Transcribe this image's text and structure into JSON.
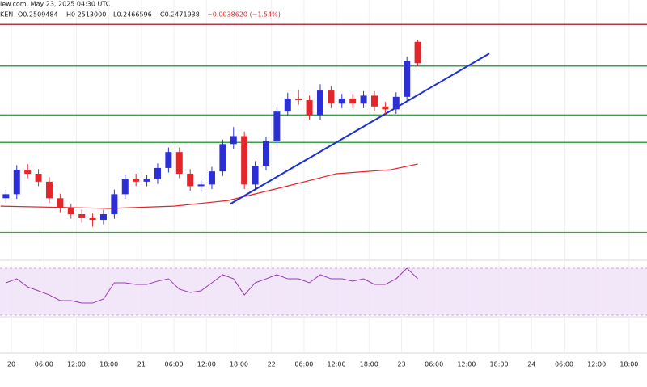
{
  "header": {
    "source": "iew.com, May 23, 2025 04:30 UTC",
    "symbol": "KEN",
    "open": "O0.2509484",
    "high": "H0.2513000",
    "low": "L0.2466596",
    "close": "C0.2471938",
    "change": "−0.0038620 (−1.54%)"
  },
  "chart_data": {
    "type": "candlestick",
    "x": [
      -1,
      1,
      3,
      5,
      7,
      9,
      11,
      13,
      15,
      17,
      19,
      21,
      23,
      25,
      27,
      29,
      31,
      33,
      35,
      37,
      39,
      41,
      43,
      45,
      47,
      49,
      51,
      53,
      55,
      57,
      59,
      61,
      63,
      65,
      67,
      69,
      71,
      73,
      75
    ],
    "open": [
      0.2235,
      0.2242,
      0.2285,
      0.2278,
      0.2264,
      0.2235,
      0.2217,
      0.2207,
      0.22,
      0.2197,
      0.2207,
      0.2242,
      0.2268,
      0.2264,
      0.2268,
      0.2288,
      0.2316,
      0.2278,
      0.2256,
      0.2259,
      0.2282,
      0.233,
      0.2344,
      0.2259,
      0.2292,
      0.2335,
      0.2387,
      0.241,
      0.2407,
      0.2381,
      0.2424,
      0.2401,
      0.241,
      0.2401,
      0.2415,
      0.2396,
      0.2391,
      0.2413,
      0.2509484
    ],
    "high": [
      0.225,
      0.2293,
      0.2295,
      0.2286,
      0.2272,
      0.2243,
      0.2225,
      0.2215,
      0.2208,
      0.2215,
      0.225,
      0.2276,
      0.2278,
      0.2276,
      0.2296,
      0.2324,
      0.2324,
      0.2286,
      0.2267,
      0.229,
      0.2338,
      0.236,
      0.2352,
      0.23,
      0.2343,
      0.2395,
      0.242,
      0.2425,
      0.2415,
      0.2435,
      0.2432,
      0.2418,
      0.2418,
      0.2423,
      0.2423,
      0.2404,
      0.2421,
      0.2484,
      0.2513
    ],
    "low": [
      0.2227,
      0.2234,
      0.227,
      0.2256,
      0.2227,
      0.2209,
      0.2199,
      0.2192,
      0.2185,
      0.2189,
      0.2199,
      0.2234,
      0.2256,
      0.2256,
      0.226,
      0.228,
      0.227,
      0.2248,
      0.2248,
      0.2251,
      0.2274,
      0.2322,
      0.2251,
      0.2251,
      0.2284,
      0.2327,
      0.2379,
      0.2399,
      0.2373,
      0.2373,
      0.2393,
      0.2393,
      0.2393,
      0.2393,
      0.2388,
      0.2383,
      0.2383,
      0.2405,
      0.2466596
    ],
    "close": [
      0.2242,
      0.2285,
      0.2278,
      0.2264,
      0.2235,
      0.2217,
      0.2207,
      0.22,
      0.2197,
      0.2207,
      0.2242,
      0.2268,
      0.2264,
      0.2268,
      0.2288,
      0.2316,
      0.2278,
      0.2256,
      0.2259,
      0.2282,
      0.233,
      0.2344,
      0.2259,
      0.2292,
      0.2335,
      0.2387,
      0.241,
      0.2407,
      0.2381,
      0.2424,
      0.2401,
      0.241,
      0.2401,
      0.2415,
      0.2396,
      0.2391,
      0.2413,
      0.2476,
      0.2471938
    ],
    "up_color": "#2b2fd4",
    "down_color": "#e2262b",
    "xlim": [
      -2.1,
      117.3
    ],
    "xticks": [
      {
        "value": 0,
        "label": "20"
      },
      {
        "value": 6,
        "label": "06:00"
      },
      {
        "value": 12,
        "label": "12:00"
      },
      {
        "value": 18,
        "label": "18:00"
      },
      {
        "value": 24,
        "label": "21"
      },
      {
        "value": 30,
        "label": "06:00"
      },
      {
        "value": 36,
        "label": "12:00"
      },
      {
        "value": 42,
        "label": "18:00"
      },
      {
        "value": 48,
        "label": "22"
      },
      {
        "value": 54,
        "label": "06:00"
      },
      {
        "value": 60,
        "label": "12:00"
      },
      {
        "value": 66,
        "label": "18:00"
      },
      {
        "value": 72,
        "label": "23"
      },
      {
        "value": 78,
        "label": "06:00"
      },
      {
        "value": 84,
        "label": "12:00"
      },
      {
        "value": 90,
        "label": "18:00"
      },
      {
        "value": 96,
        "label": "24"
      },
      {
        "value": 102,
        "label": "06:00"
      },
      {
        "value": 108,
        "label": "12:00"
      },
      {
        "value": 114,
        "label": "18:00"
      }
    ],
    "ylim": [
      0.2129,
      0.2583
    ],
    "grid": true,
    "levels": [
      {
        "value": 0.254,
        "color": "#b03a44"
      },
      {
        "value": 0.2467,
        "color": "#3aa34a"
      },
      {
        "value": 0.2381,
        "color": "#3aa34a"
      },
      {
        "value": 0.2333,
        "color": "#3aa34a"
      },
      {
        "value": 0.2175,
        "color": "#3aa34a"
      }
    ],
    "trendline": {
      "x": [
        40.4,
        88.2
      ],
      "values": [
        0.2225,
        0.2489
      ],
      "color": "#1c2fd6"
    },
    "moving_average": {
      "x": [
        -2,
        18,
        30,
        40,
        50,
        60,
        70,
        75
      ],
      "values": [
        0.2221,
        0.2217,
        0.2221,
        0.2231,
        0.2254,
        0.2278,
        0.2285,
        0.2295
      ],
      "color": "#e8222a"
    },
    "rsi": {
      "values": [
        57.6,
        61.0,
        54.1,
        50.7,
        47.2,
        42.4,
        42.4,
        40.3,
        40.3,
        43.8,
        57.6,
        57.6,
        56.2,
        56.2,
        59.0,
        61.0,
        52.1,
        49.3,
        50.7,
        57.6,
        64.5,
        61.0,
        47.2,
        57.6,
        61.0,
        64.5,
        61.0,
        61.0,
        57.6,
        64.5,
        61.0,
        61.0,
        59.0,
        61.0,
        56.2,
        56.2,
        61.0,
        70.0,
        61.0
      ],
      "ylim": [
        28.6,
        76.9
      ],
      "band": [
        30,
        70
      ],
      "color": "#9a3cb4",
      "band_color": "#efe0f7"
    }
  }
}
